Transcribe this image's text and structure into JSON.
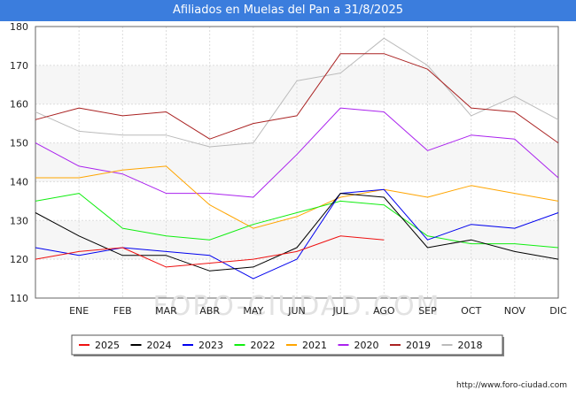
{
  "title": "Afiliados en Muelas del Pan a 31/8/2025",
  "source_url": "http://www.foro-ciudad.com",
  "watermark": "FORO-CIUDAD.COM",
  "chart_data": {
    "type": "line",
    "title": "Afiliados en Muelas del Pan a 31/8/2025",
    "x": [
      "",
      "ENE",
      "FEB",
      "MAR",
      "ABR",
      "MAY",
      "JUN",
      "JUL",
      "AGO",
      "SEP",
      "OCT",
      "NOV",
      "DIC"
    ],
    "ylim": [
      110,
      180
    ],
    "yticks": [
      110,
      120,
      130,
      140,
      150,
      160,
      170,
      180
    ],
    "grid": true,
    "legend_position": "bottom",
    "series": [
      {
        "name": "2025",
        "color": "#ee1111",
        "values": [
          120,
          122,
          123,
          118,
          119,
          120,
          122,
          126,
          125,
          null,
          null,
          null,
          null
        ]
      },
      {
        "name": "2024",
        "color": "#000000",
        "values": [
          132,
          126,
          121,
          121,
          117,
          118,
          123,
          137,
          136,
          123,
          125,
          122,
          120
        ]
      },
      {
        "name": "2023",
        "color": "#0000ee",
        "values": [
          123,
          121,
          123,
          122,
          121,
          115,
          120,
          137,
          138,
          125,
          129,
          128,
          132
        ]
      },
      {
        "name": "2022",
        "color": "#11ee11",
        "values": [
          135,
          137,
          128,
          126,
          125,
          129,
          132,
          135,
          134,
          126,
          124,
          124,
          123
        ]
      },
      {
        "name": "2021",
        "color": "#ffa500",
        "values": [
          141,
          141,
          143,
          144,
          134,
          128,
          131,
          136,
          138,
          136,
          139,
          137,
          135
        ]
      },
      {
        "name": "2020",
        "color": "#aa22ee",
        "values": [
          150,
          144,
          142,
          137,
          137,
          136,
          147,
          159,
          158,
          148,
          152,
          151,
          141
        ]
      },
      {
        "name": "2019",
        "color": "#aa2222",
        "values": [
          156,
          159,
          157,
          158,
          151,
          155,
          157,
          173,
          173,
          169,
          159,
          158,
          150
        ]
      },
      {
        "name": "2018",
        "color": "#bbbbbb",
        "values": [
          158,
          153,
          152,
          152,
          149,
          150,
          166,
          168,
          177,
          170,
          157,
          162,
          156
        ]
      }
    ]
  }
}
